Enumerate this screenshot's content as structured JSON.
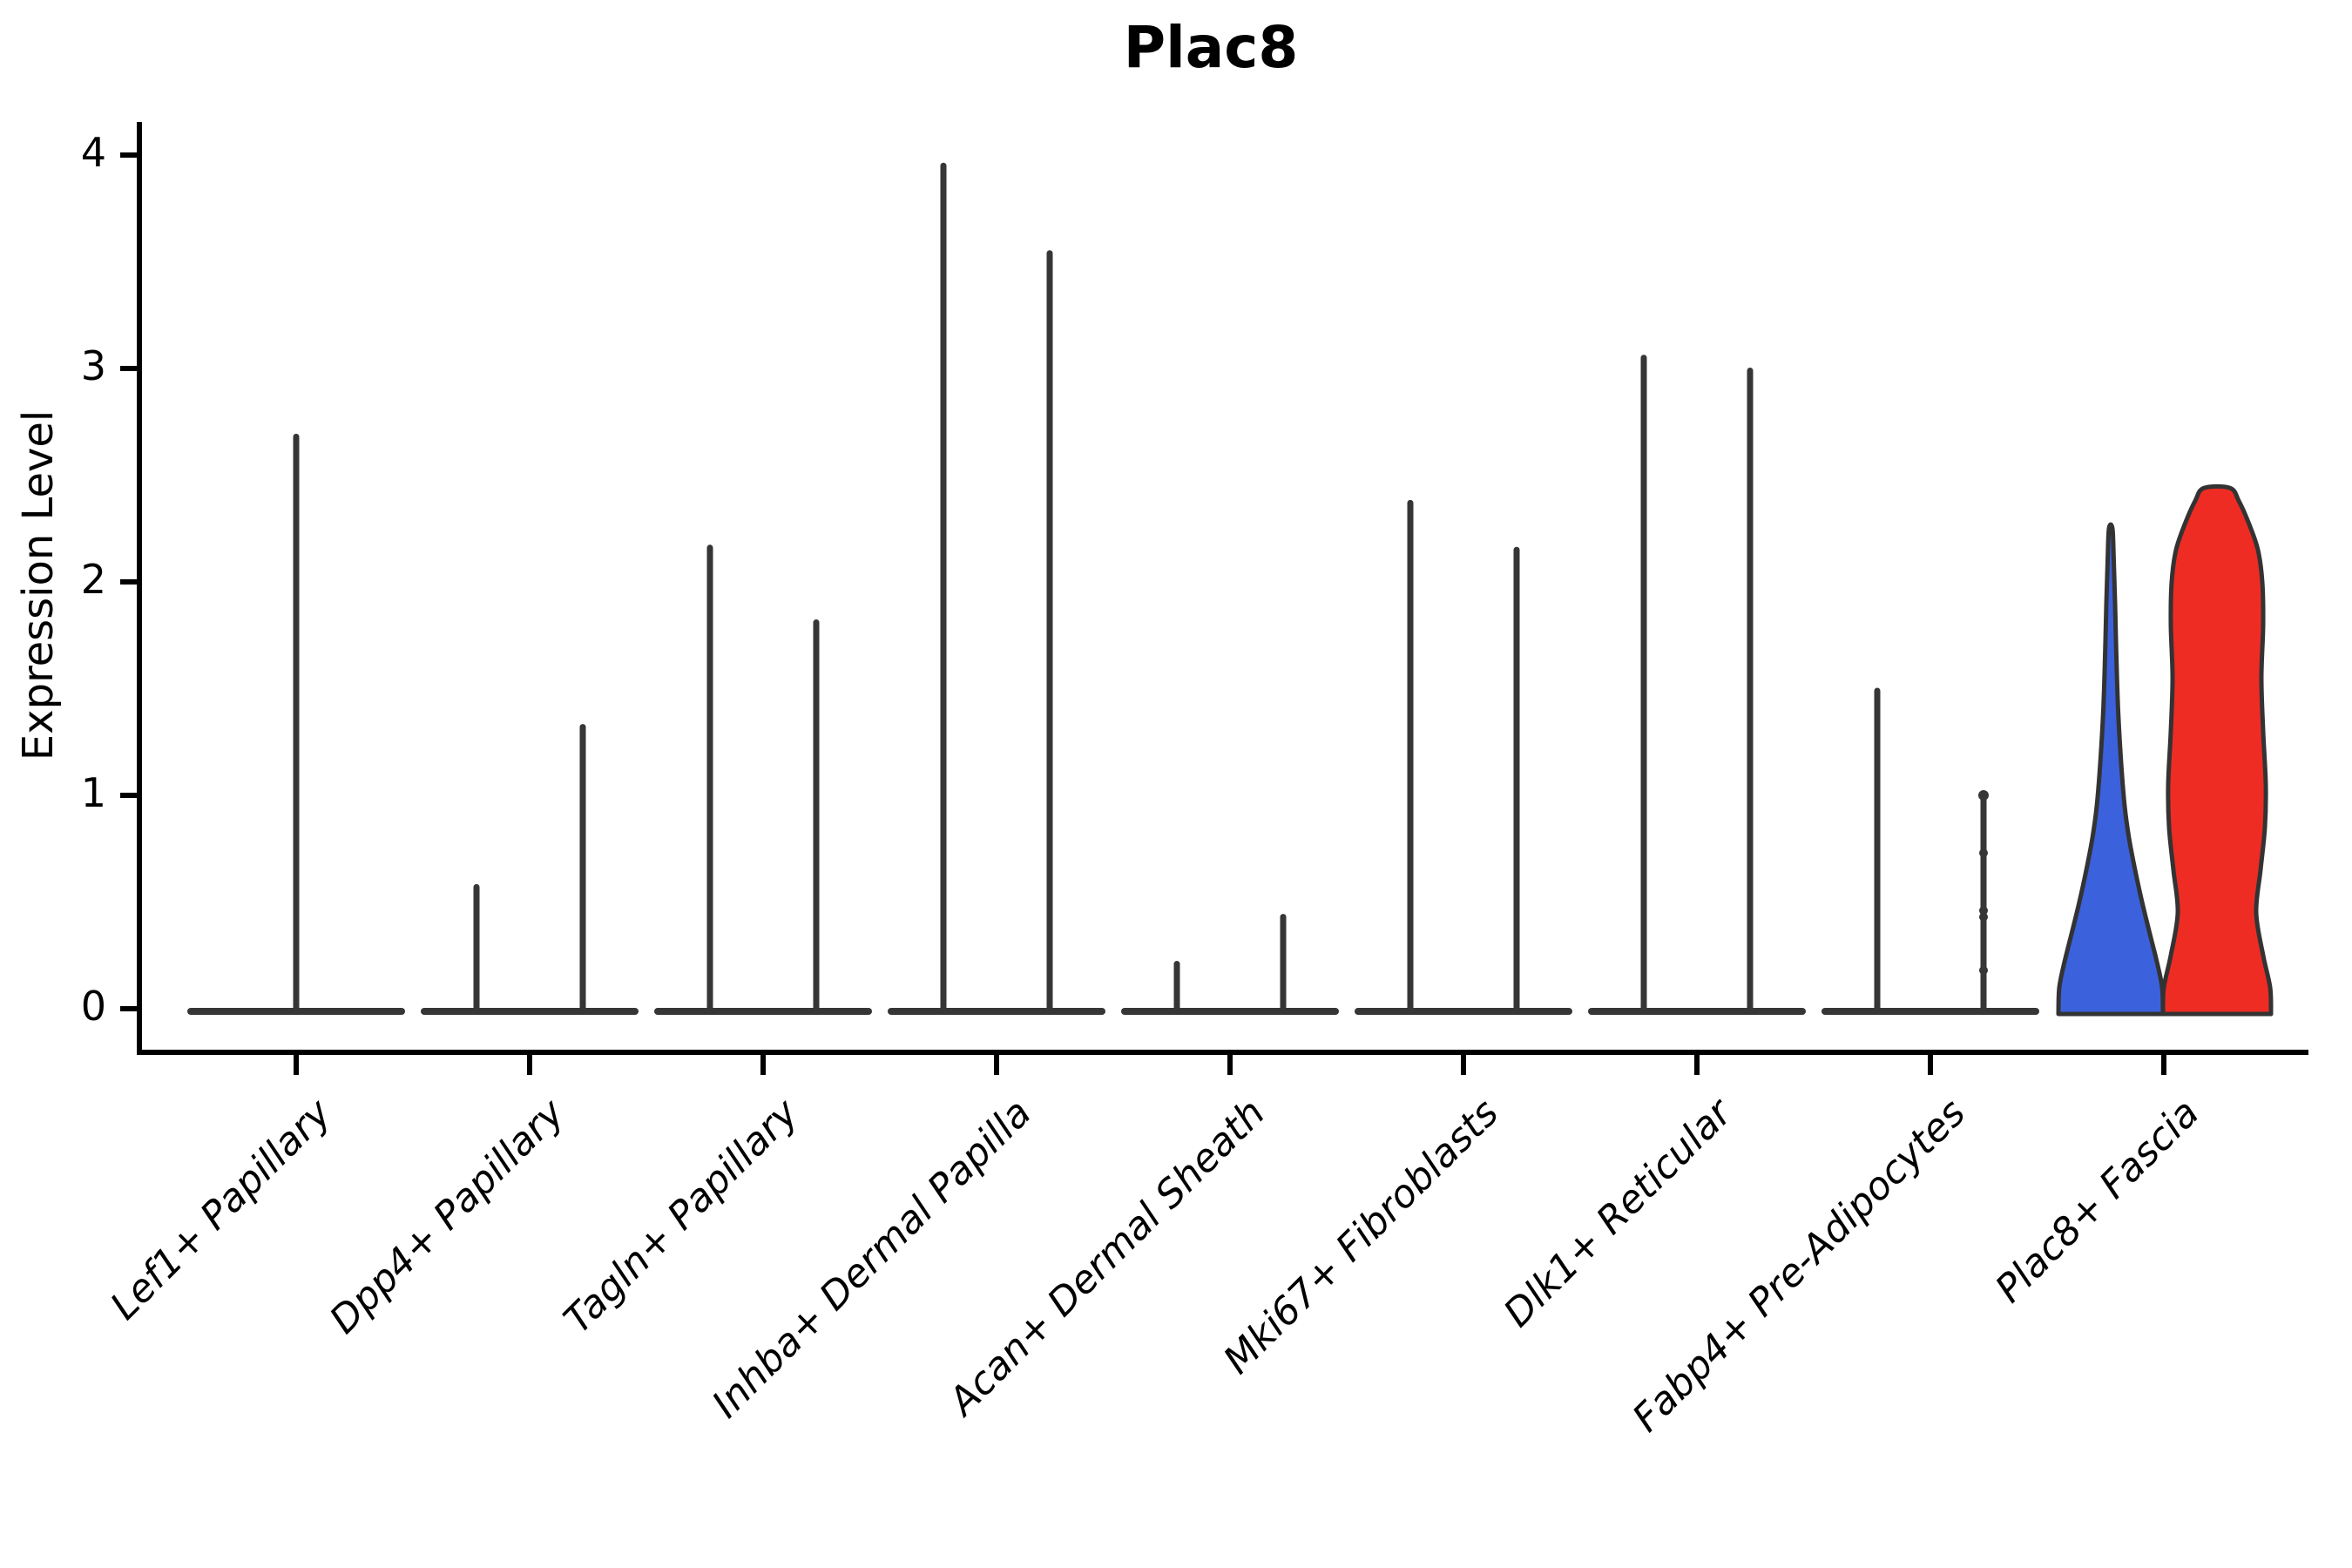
{
  "title": "Plac8",
  "colors": {
    "blue_fill": "#3b61dd",
    "red_fill": "#ee2c24",
    "violin_stroke": "#333333",
    "spike_color": "#363636",
    "axis_color": "#000000"
  },
  "chart_data": {
    "type": "violin",
    "title": "Plac8",
    "xlabel": "",
    "ylabel": "Expression Level",
    "ylim": [
      0,
      4
    ],
    "yticks": [
      0,
      1,
      2,
      3,
      4
    ],
    "grid": "off",
    "legend": "none",
    "categories": [
      "Lef1+ Papillary",
      "Dpp4+ Papillary",
      "Tagln+ Papillary",
      "Inhba+ Dermal Papilla",
      "Acan+ Dermal Sheath",
      "Mki67+ Fibroblasts",
      "Dlk1+ Reticular",
      "Fabp4+ Pre-Adipocytes",
      "Plac8+ Fascia"
    ],
    "description": "Split violin plot of Plac8 expression; most cell-type violins collapse to a flat base at 0 with a thin spike to the max expression value. Plac8+ Fascia shows two wide filled violins (blue and red split groups).",
    "groups": [
      {
        "label": "Lef1+ Papillary",
        "violins": [
          {
            "offset": 0,
            "kind": "spike",
            "max": 2.68
          }
        ]
      },
      {
        "label": "Dpp4+ Papillary",
        "violins": [
          {
            "offset": -1,
            "kind": "spike",
            "max": 0.57
          },
          {
            "offset": 1,
            "kind": "spike",
            "max": 1.32
          }
        ]
      },
      {
        "label": "Tagln+ Papillary",
        "violins": [
          {
            "offset": -1,
            "kind": "spike",
            "max": 2.16
          },
          {
            "offset": 1,
            "kind": "spike",
            "max": 1.81
          }
        ]
      },
      {
        "label": "Inhba+ Dermal Papilla",
        "violins": [
          {
            "offset": -1,
            "kind": "spike",
            "max": 3.95
          },
          {
            "offset": 1,
            "kind": "spike",
            "max": 3.54
          }
        ]
      },
      {
        "label": "Acan+ Dermal Sheath",
        "violins": [
          {
            "offset": -1,
            "kind": "spike",
            "max": 0.21
          },
          {
            "offset": 1,
            "kind": "spike",
            "max": 0.43
          }
        ]
      },
      {
        "label": "Mki67+ Fibroblasts",
        "violins": [
          {
            "offset": -1,
            "kind": "spike",
            "max": 2.37
          },
          {
            "offset": 1,
            "kind": "spike",
            "max": 2.15
          }
        ]
      },
      {
        "label": "Dlk1+ Reticular",
        "violins": [
          {
            "offset": -1,
            "kind": "spike",
            "max": 3.05
          },
          {
            "offset": 1,
            "kind": "spike",
            "max": 2.99
          }
        ]
      },
      {
        "label": "Fabp4+ Pre-Adipocytes",
        "violins": [
          {
            "offset": -1,
            "kind": "spike",
            "max": 1.49
          },
          {
            "offset": 1,
            "kind": "spike",
            "max": 1.0,
            "dots": [
              1.0,
              0.73,
              0.46,
              0.43,
              0.18
            ]
          }
        ]
      },
      {
        "label": "Plac8+ Fascia",
        "violins": [
          {
            "offset": -1,
            "kind": "violin",
            "max": 2.25,
            "fill": "blue_fill",
            "profile": [
              [
                0,
                60
              ],
              [
                0.1,
                59
              ],
              [
                0.22,
                53
              ],
              [
                0.35,
                45
              ],
              [
                0.5,
                36
              ],
              [
                0.65,
                28
              ],
              [
                0.8,
                21
              ],
              [
                0.95,
                16
              ],
              [
                1.15,
                12
              ],
              [
                1.4,
                8.5
              ],
              [
                1.65,
                6.5
              ],
              [
                1.9,
                5
              ],
              [
                2.1,
                3.5
              ],
              [
                2.25,
                2
              ]
            ]
          },
          {
            "offset": 1,
            "kind": "violin",
            "max": 2.44,
            "fill": "red_fill",
            "profile": [
              [
                0,
                62
              ],
              [
                0.1,
                61
              ],
              [
                0.25,
                53
              ],
              [
                0.45,
                45
              ],
              [
                0.65,
                50
              ],
              [
                0.85,
                55
              ],
              [
                1.05,
                56
              ],
              [
                1.3,
                53
              ],
              [
                1.55,
                51
              ],
              [
                1.8,
                53
              ],
              [
                2.0,
                52
              ],
              [
                2.15,
                47
              ],
              [
                2.28,
                36
              ],
              [
                2.38,
                25
              ],
              [
                2.44,
                15
              ]
            ]
          }
        ]
      }
    ]
  }
}
